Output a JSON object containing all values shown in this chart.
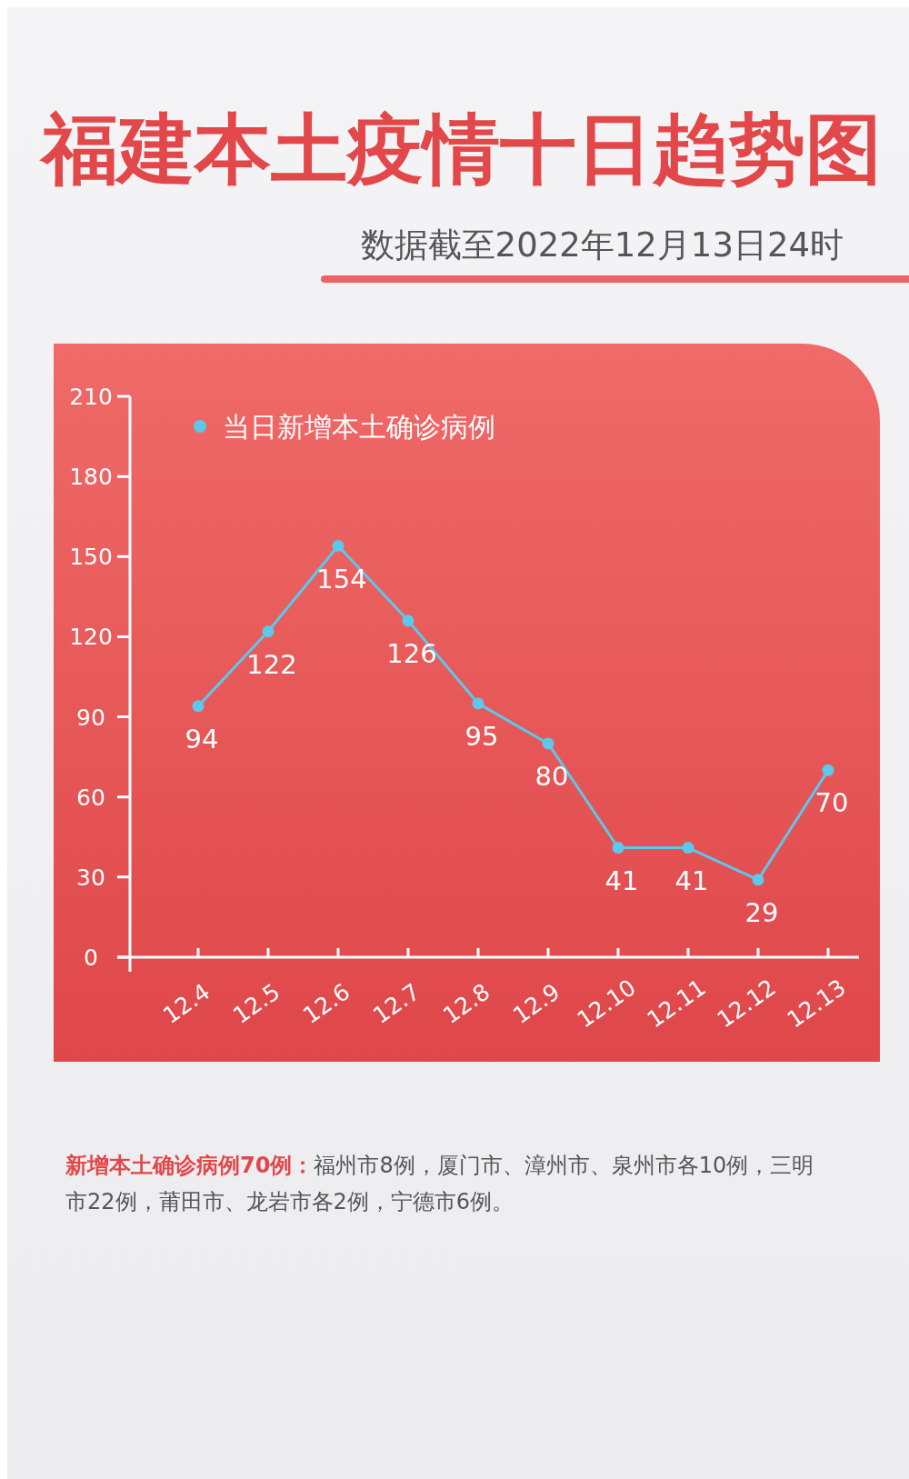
{
  "chart_data": {
    "type": "line",
    "title": "福建本土疫情十日趋势图",
    "subtitle": "数据截至2022年12月13日24时",
    "categories": [
      "12.4",
      "12.5",
      "12.6",
      "12.7",
      "12.8",
      "12.9",
      "12.10",
      "12.11",
      "12.12",
      "12.13"
    ],
    "series": [
      {
        "name": "当日新增本土确诊病例",
        "color": "#5bc8ec",
        "values": [
          94,
          122,
          154,
          126,
          95,
          80,
          41,
          41,
          29,
          70
        ]
      }
    ],
    "ylim": [
      0,
      210
    ],
    "yticks": [
      0,
      30,
      60,
      90,
      120,
      150,
      180,
      210
    ],
    "grid": false,
    "legend": "top left",
    "marker": "circle",
    "data_labels": true,
    "annotations": [
      "新增本土确诊病例70例：",
      "福州市8例，厦门市、漳州市、泉州市各10例，三明市22例，莆田市、龙岩市各2例，宁德市6例。"
    ]
  }
}
